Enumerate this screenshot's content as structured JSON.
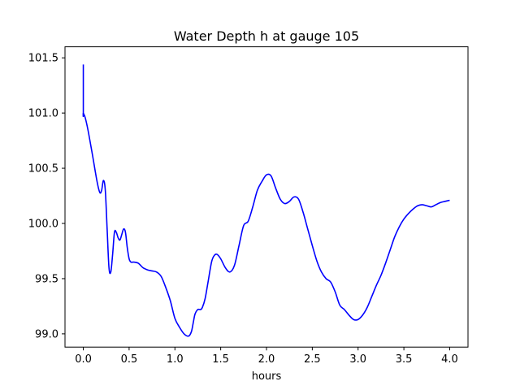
{
  "chart_data": {
    "type": "line",
    "title": "Water Depth h at gauge 105",
    "xlabel": "hours",
    "ylabel": "",
    "xlim": [
      -0.2,
      4.2
    ],
    "ylim": [
      98.88,
      101.6
    ],
    "x_ticks": [
      0.0,
      0.5,
      1.0,
      1.5,
      2.0,
      2.5,
      3.0,
      3.5,
      4.0
    ],
    "x_tick_labels": [
      "0.0",
      "0.5",
      "1.0",
      "1.5",
      "2.0",
      "2.5",
      "3.0",
      "3.5",
      "4.0"
    ],
    "y_ticks": [
      99.0,
      99.5,
      100.0,
      100.5,
      101.0,
      101.5
    ],
    "y_tick_labels": [
      "99.0",
      "99.5",
      "100.0",
      "100.5",
      "101.0",
      "101.5"
    ],
    "grid": false,
    "series": [
      {
        "color": "#0000ff",
        "x": [
          0.0,
          0.0,
          0.0,
          0.02,
          0.05,
          0.1,
          0.15,
          0.18,
          0.2,
          0.22,
          0.24,
          0.26,
          0.28,
          0.3,
          0.32,
          0.34,
          0.36,
          0.38,
          0.4,
          0.42,
          0.44,
          0.46,
          0.48,
          0.5,
          0.52,
          0.55,
          0.6,
          0.65,
          0.7,
          0.75,
          0.8,
          0.85,
          0.9,
          0.95,
          1.0,
          1.05,
          1.1,
          1.15,
          1.18,
          1.2,
          1.22,
          1.25,
          1.28,
          1.3,
          1.33,
          1.36,
          1.4,
          1.43,
          1.46,
          1.5,
          1.55,
          1.6,
          1.65,
          1.7,
          1.75,
          1.8,
          1.85,
          1.9,
          1.95,
          2.0,
          2.05,
          2.1,
          2.15,
          2.2,
          2.25,
          2.3,
          2.35,
          2.4,
          2.45,
          2.5,
          2.55,
          2.6,
          2.65,
          2.7,
          2.75,
          2.8,
          2.85,
          2.9,
          2.95,
          3.0,
          3.05,
          3.1,
          3.15,
          3.2,
          3.25,
          3.3,
          3.35,
          3.4,
          3.45,
          3.5,
          3.55,
          3.6,
          3.65,
          3.7,
          3.75,
          3.8,
          3.85,
          3.9,
          3.95,
          4.0
        ],
        "y": [
          101.44,
          101.0,
          101.0,
          100.96,
          100.85,
          100.62,
          100.38,
          100.28,
          100.3,
          100.39,
          100.3,
          99.95,
          99.6,
          99.56,
          99.72,
          99.92,
          99.92,
          99.87,
          99.85,
          99.9,
          99.95,
          99.92,
          99.78,
          99.68,
          99.65,
          99.65,
          99.64,
          99.6,
          99.58,
          99.57,
          99.56,
          99.52,
          99.42,
          99.3,
          99.14,
          99.06,
          99.0,
          98.98,
          99.02,
          99.1,
          99.18,
          99.22,
          99.22,
          99.24,
          99.32,
          99.46,
          99.65,
          99.71,
          99.72,
          99.68,
          99.6,
          99.56,
          99.62,
          99.8,
          99.98,
          100.02,
          100.15,
          100.3,
          100.38,
          100.44,
          100.43,
          100.32,
          100.22,
          100.18,
          100.2,
          100.24,
          100.22,
          100.1,
          99.95,
          99.8,
          99.66,
          99.56,
          99.5,
          99.47,
          99.38,
          99.26,
          99.22,
          99.17,
          99.13,
          99.13,
          99.17,
          99.24,
          99.34,
          99.44,
          99.53,
          99.64,
          99.76,
          99.88,
          99.97,
          100.04,
          100.09,
          100.13,
          100.16,
          100.17,
          100.16,
          100.15,
          100.17,
          100.19,
          100.2,
          100.21
        ]
      }
    ]
  }
}
